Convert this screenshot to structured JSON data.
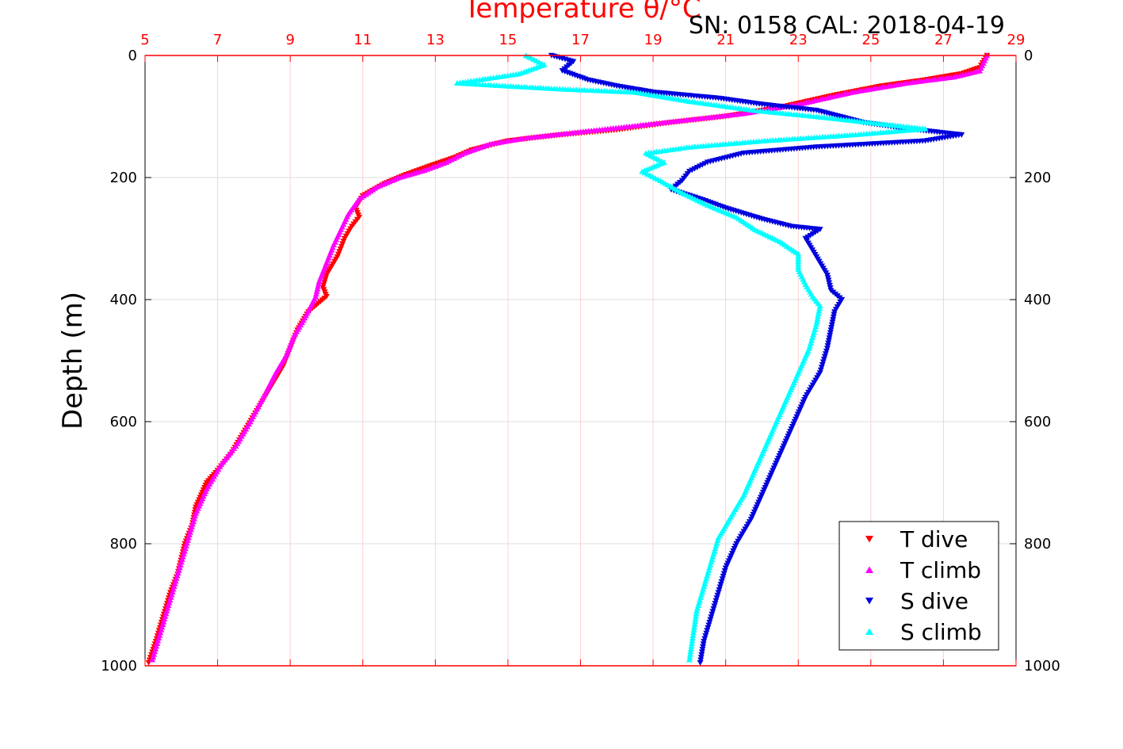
{
  "chart_data": {
    "type": "scatter",
    "title": "Temperature θ/°C",
    "subtitle": "SN: 0158  CAL: 2018-04-19",
    "xlabel": "Temperature θ/°C",
    "ylabel": "Depth (m)",
    "xlim": [
      5,
      29
    ],
    "ylim": [
      0,
      1000
    ],
    "y_reversed": true,
    "x_axis_position": "top",
    "x_ticks": [
      "5",
      "7",
      "9",
      "11",
      "13",
      "15",
      "17",
      "19",
      "21",
      "23",
      "25",
      "27",
      "29"
    ],
    "y_ticks": [
      "0",
      "200",
      "400",
      "600",
      "800",
      "1000"
    ],
    "grid": true,
    "legend_position": "bottom-right",
    "colors": {
      "t_dive": "#ff0000",
      "t_climb": "#ff00ff",
      "s_dive": "#0000dd",
      "s_climb": "#00ffff",
      "axis": "#ff0000"
    },
    "series": [
      {
        "name": "T dive",
        "marker": "triangle-down",
        "points": [
          [
            28.2,
            0
          ],
          [
            28.0,
            20
          ],
          [
            27.5,
            30
          ],
          [
            26.5,
            40
          ],
          [
            25.3,
            50
          ],
          [
            24.0,
            65
          ],
          [
            22.5,
            85
          ],
          [
            21.0,
            100
          ],
          [
            19.5,
            110
          ],
          [
            18.0,
            122
          ],
          [
            16.5,
            130
          ],
          [
            15.0,
            140
          ],
          [
            14.0,
            155
          ],
          [
            13.5,
            168
          ],
          [
            13.0,
            178
          ],
          [
            12.2,
            195
          ],
          [
            11.6,
            210
          ],
          [
            11.0,
            230
          ],
          [
            10.8,
            250
          ],
          [
            10.9,
            265
          ],
          [
            10.7,
            280
          ],
          [
            10.5,
            300
          ],
          [
            10.3,
            330
          ],
          [
            10.0,
            360
          ],
          [
            9.9,
            380
          ],
          [
            10.0,
            395
          ],
          [
            9.5,
            420
          ],
          [
            9.2,
            450
          ],
          [
            9.0,
            480
          ],
          [
            8.8,
            510
          ],
          [
            8.5,
            540
          ],
          [
            8.2,
            570
          ],
          [
            7.8,
            610
          ],
          [
            7.4,
            650
          ],
          [
            7.0,
            680
          ],
          [
            6.7,
            700
          ],
          [
            6.4,
            740
          ],
          [
            6.3,
            770
          ],
          [
            6.1,
            800
          ],
          [
            5.9,
            850
          ],
          [
            5.7,
            880
          ],
          [
            5.5,
            920
          ],
          [
            5.3,
            960
          ],
          [
            5.1,
            995
          ]
        ]
      },
      {
        "name": "T climb",
        "marker": "triangle-up",
        "points": [
          [
            28.2,
            0
          ],
          [
            28.0,
            25
          ],
          [
            27.3,
            35
          ],
          [
            26.0,
            45
          ],
          [
            24.5,
            60
          ],
          [
            23.0,
            80
          ],
          [
            21.5,
            95
          ],
          [
            20.0,
            105
          ],
          [
            18.5,
            115
          ],
          [
            17.0,
            125
          ],
          [
            15.5,
            135
          ],
          [
            14.5,
            145
          ],
          [
            13.8,
            160
          ],
          [
            13.3,
            175
          ],
          [
            12.7,
            188
          ],
          [
            12.0,
            200
          ],
          [
            11.4,
            215
          ],
          [
            10.9,
            235
          ],
          [
            10.6,
            260
          ],
          [
            10.4,
            285
          ],
          [
            10.2,
            310
          ],
          [
            10.0,
            340
          ],
          [
            9.8,
            370
          ],
          [
            9.7,
            395
          ],
          [
            9.4,
            430
          ],
          [
            9.1,
            460
          ],
          [
            8.9,
            490
          ],
          [
            8.6,
            520
          ],
          [
            8.3,
            555
          ],
          [
            7.9,
            600
          ],
          [
            7.5,
            640
          ],
          [
            7.1,
            670
          ],
          [
            6.7,
            710
          ],
          [
            6.4,
            750
          ],
          [
            6.2,
            790
          ],
          [
            6.0,
            830
          ],
          [
            5.8,
            870
          ],
          [
            5.6,
            910
          ],
          [
            5.4,
            950
          ],
          [
            5.2,
            990
          ]
        ]
      },
      {
        "name": "S dive",
        "marker": "triangle-down",
        "points": [
          [
            16.2,
            0
          ],
          [
            16.8,
            10
          ],
          [
            16.5,
            25
          ],
          [
            17.2,
            40
          ],
          [
            18.0,
            50
          ],
          [
            19.0,
            60
          ],
          [
            20.8,
            70
          ],
          [
            22.0,
            80
          ],
          [
            23.5,
            90
          ],
          [
            24.8,
            110
          ],
          [
            26.0,
            120
          ],
          [
            27.5,
            130
          ],
          [
            26.5,
            140
          ],
          [
            23.5,
            150
          ],
          [
            21.5,
            160
          ],
          [
            20.5,
            175
          ],
          [
            20.0,
            190
          ],
          [
            19.8,
            205
          ],
          [
            19.5,
            220
          ],
          [
            20.3,
            235
          ],
          [
            21.0,
            250
          ],
          [
            22.0,
            268
          ],
          [
            22.8,
            280
          ],
          [
            23.6,
            285
          ],
          [
            23.2,
            300
          ],
          [
            23.5,
            330
          ],
          [
            23.8,
            360
          ],
          [
            23.9,
            385
          ],
          [
            24.2,
            400
          ],
          [
            24.0,
            420
          ],
          [
            23.9,
            450
          ],
          [
            23.8,
            480
          ],
          [
            23.6,
            520
          ],
          [
            23.2,
            560
          ],
          [
            22.9,
            600
          ],
          [
            22.6,
            640
          ],
          [
            22.3,
            680
          ],
          [
            22.0,
            720
          ],
          [
            21.7,
            760
          ],
          [
            21.3,
            800
          ],
          [
            21.0,
            840
          ],
          [
            20.8,
            880
          ],
          [
            20.6,
            920
          ],
          [
            20.4,
            960
          ],
          [
            20.3,
            995
          ]
        ]
      },
      {
        "name": "S climb",
        "marker": "triangle-up",
        "points": [
          [
            15.5,
            0
          ],
          [
            16.0,
            15
          ],
          [
            15.3,
            30
          ],
          [
            13.6,
            45
          ],
          [
            15.0,
            50
          ],
          [
            16.5,
            55
          ],
          [
            18.5,
            60
          ],
          [
            20.0,
            75
          ],
          [
            21.8,
            90
          ],
          [
            23.5,
            100
          ],
          [
            25.0,
            110
          ],
          [
            26.5,
            120
          ],
          [
            24.5,
            130
          ],
          [
            22.0,
            140
          ],
          [
            20.0,
            150
          ],
          [
            18.8,
            160
          ],
          [
            19.3,
            175
          ],
          [
            18.7,
            190
          ],
          [
            19.2,
            205
          ],
          [
            19.8,
            225
          ],
          [
            20.5,
            245
          ],
          [
            21.3,
            265
          ],
          [
            21.8,
            285
          ],
          [
            22.5,
            305
          ],
          [
            23.0,
            325
          ],
          [
            23.0,
            350
          ],
          [
            23.2,
            375
          ],
          [
            23.4,
            395
          ],
          [
            23.6,
            410
          ],
          [
            23.5,
            440
          ],
          [
            23.3,
            480
          ],
          [
            23.0,
            520
          ],
          [
            22.7,
            560
          ],
          [
            22.4,
            600
          ],
          [
            22.1,
            640
          ],
          [
            21.8,
            680
          ],
          [
            21.5,
            720
          ],
          [
            21.1,
            760
          ],
          [
            20.8,
            790
          ],
          [
            20.6,
            830
          ],
          [
            20.4,
            870
          ],
          [
            20.2,
            910
          ],
          [
            20.1,
            950
          ],
          [
            20.0,
            990
          ]
        ]
      }
    ]
  }
}
